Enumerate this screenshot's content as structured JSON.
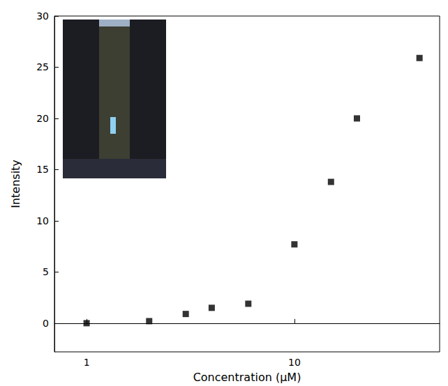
{
  "chart_data": {
    "type": "scatter",
    "xlabel": "Concentration (μM)",
    "ylabel": "Intensity",
    "x": [
      1,
      2,
      3,
      4,
      6,
      10,
      15,
      20,
      40
    ],
    "values": [
      0,
      0.2,
      0.9,
      1.5,
      1.9,
      7.7,
      13.8,
      20,
      25.9
    ],
    "xlim": [
      0.7,
      50
    ],
    "xticks": [
      1,
      10
    ],
    "ylim": [
      -2.8,
      30
    ],
    "yticks": [
      0,
      5,
      10,
      15,
      20,
      25,
      30
    ],
    "log": "x",
    "grid": false,
    "color": "#000000",
    "marker": "square"
  }
}
